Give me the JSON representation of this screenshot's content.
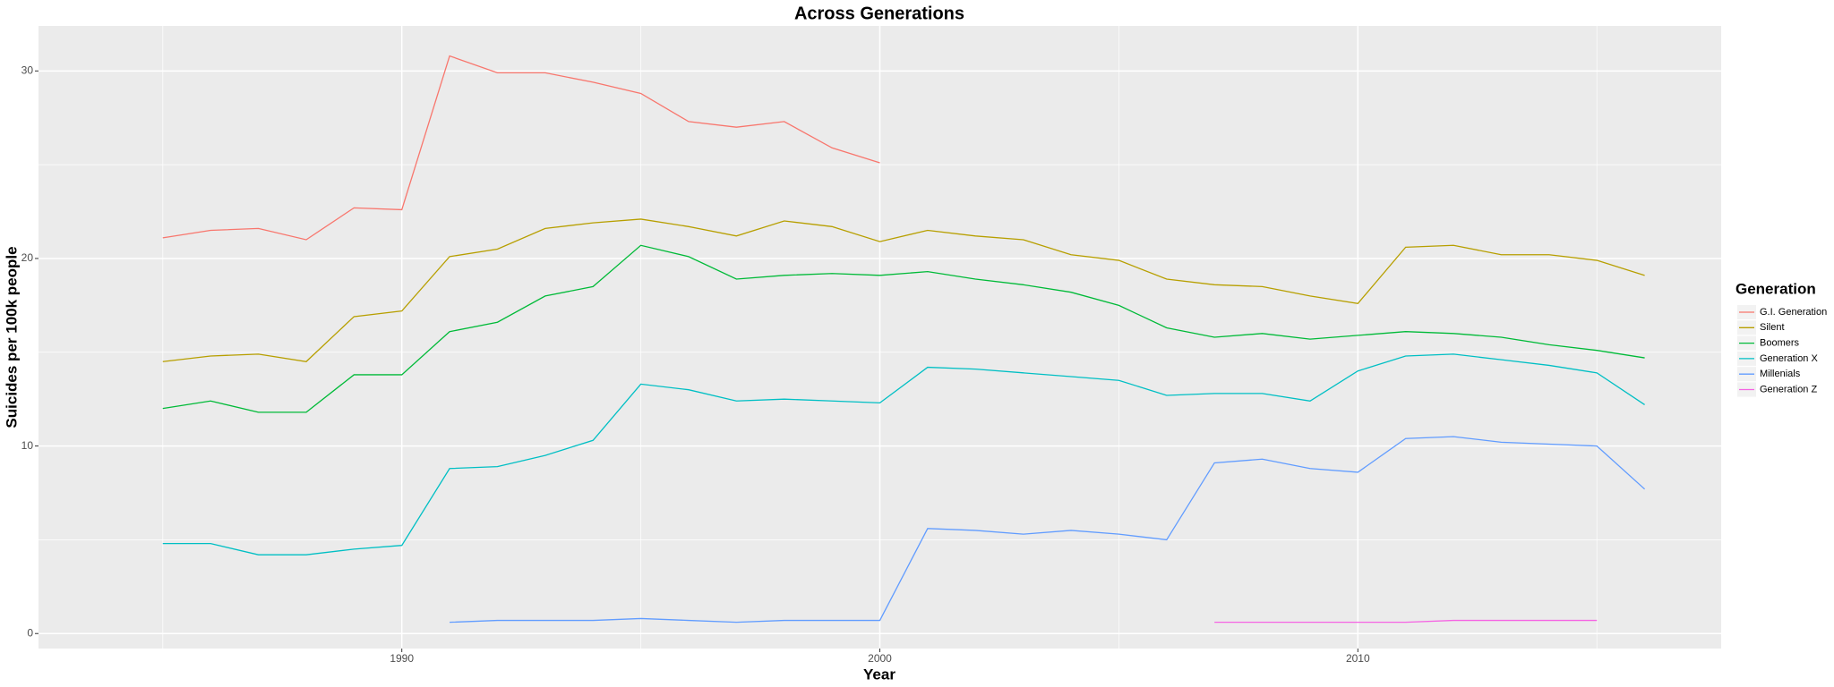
{
  "chart_data": {
    "type": "line",
    "title": "Across Generations",
    "x_label": "Year",
    "y_label": "Suicides per 100k people",
    "legend_title": "Generation",
    "legend_position": "right",
    "grid": true,
    "x": [
      1985,
      1986,
      1987,
      1988,
      1989,
      1990,
      1991,
      1992,
      1993,
      1994,
      1995,
      1996,
      1997,
      1998,
      1999,
      2000,
      2001,
      2002,
      2003,
      2004,
      2005,
      2006,
      2007,
      2008,
      2009,
      2010,
      2011,
      2012,
      2013,
      2014,
      2015,
      2016
    ],
    "xlim": [
      1982.4,
      2017.6
    ],
    "xticks": [
      1990,
      2000,
      2010
    ],
    "x_minor_grid": [
      1985,
      1995,
      2005,
      2015
    ],
    "ylim": [
      -0.8,
      32.4
    ],
    "yticks": [
      0,
      10,
      20,
      30
    ],
    "y_minor_grid": [
      5,
      15,
      25
    ],
    "series": [
      {
        "name": "G.I. Generation",
        "color": "#F8766D",
        "values": [
          21.1,
          21.5,
          21.6,
          21.0,
          22.7,
          22.6,
          30.8,
          29.9,
          29.9,
          29.4,
          28.8,
          27.3,
          27.0,
          27.3,
          25.9,
          25.1,
          null,
          null,
          null,
          null,
          null,
          null,
          null,
          null,
          null,
          null,
          null,
          null,
          null,
          null,
          null,
          null
        ]
      },
      {
        "name": "Silent",
        "color": "#B79F00",
        "values": [
          14.5,
          14.8,
          14.9,
          14.5,
          16.9,
          17.2,
          20.1,
          20.5,
          21.6,
          21.9,
          22.1,
          21.7,
          21.2,
          22.0,
          21.7,
          20.9,
          21.5,
          21.2,
          21.0,
          20.2,
          19.9,
          18.9,
          18.6,
          18.5,
          18.0,
          17.6,
          20.6,
          20.7,
          20.2,
          20.2,
          19.9,
          19.1
        ]
      },
      {
        "name": "Boomers",
        "color": "#00BA38",
        "values": [
          12.0,
          12.4,
          11.8,
          11.8,
          13.8,
          13.8,
          16.1,
          16.6,
          18.0,
          18.5,
          20.7,
          20.1,
          18.9,
          19.1,
          19.2,
          19.1,
          19.3,
          18.9,
          18.6,
          18.2,
          17.5,
          16.3,
          15.8,
          16.0,
          15.7,
          15.9,
          16.1,
          16.0,
          15.8,
          15.4,
          15.1,
          14.7
        ]
      },
      {
        "name": "Generation X",
        "color": "#00BFC4",
        "values": [
          4.8,
          4.8,
          4.2,
          4.2,
          4.5,
          4.7,
          8.8,
          8.9,
          9.5,
          10.3,
          13.3,
          13.0,
          12.4,
          12.5,
          12.4,
          12.3,
          14.2,
          14.1,
          13.9,
          13.7,
          13.5,
          12.7,
          12.8,
          12.8,
          12.4,
          14.0,
          14.8,
          14.9,
          14.6,
          14.3,
          13.9,
          12.2
        ]
      },
      {
        "name": "Millenials",
        "color": "#619CFF",
        "values": [
          null,
          null,
          null,
          null,
          null,
          null,
          0.6,
          0.7,
          0.7,
          0.7,
          0.8,
          0.7,
          0.6,
          0.7,
          0.7,
          0.7,
          5.6,
          5.5,
          5.3,
          5.5,
          5.3,
          5.0,
          9.1,
          9.3,
          8.8,
          8.6,
          10.4,
          10.5,
          10.2,
          10.1,
          10.0,
          7.7
        ]
      },
      {
        "name": "Generation Z",
        "color": "#F564E3",
        "values": [
          null,
          null,
          null,
          null,
          null,
          null,
          null,
          null,
          null,
          null,
          null,
          null,
          null,
          null,
          null,
          null,
          null,
          null,
          null,
          null,
          null,
          null,
          0.6,
          0.6,
          0.6,
          0.6,
          0.6,
          0.7,
          0.7,
          0.7,
          0.7,
          null
        ]
      }
    ]
  }
}
